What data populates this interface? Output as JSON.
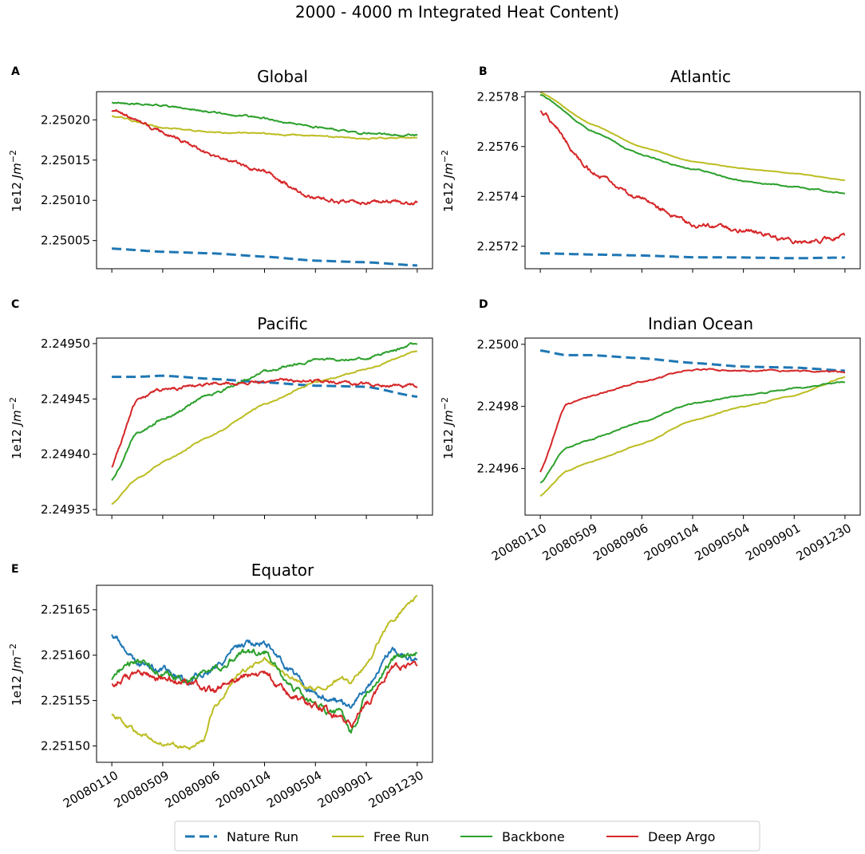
{
  "figure": {
    "title": "2000 - 4000 m Integrated Heat Content)"
  },
  "colors": {
    "Nature Run": "#1f77b4",
    "Free Run": "#bcbd22",
    "Backbone": "#2ca02c",
    "Deep Argo": "#d62728"
  },
  "legend": {
    "entries": [
      "Nature Run",
      "Free Run",
      "Backbone",
      "Deep Argo"
    ]
  },
  "chart_data": [
    {
      "type": "line",
      "panel": "A",
      "title": "Global",
      "ylabel": "1e12 Jm^-2",
      "ylim": [
        2.250015,
        2.250235
      ],
      "yticks": [
        2.25005,
        2.2501,
        2.25015,
        2.2502
      ],
      "yticklabels": [
        "2.25005",
        "2.25010",
        "2.25015",
        "2.25020"
      ],
      "xlim": [
        -3,
        63
      ],
      "xticks": [
        0,
        10,
        20,
        30,
        40,
        50,
        60
      ],
      "xticklabels": [
        "20080110",
        "20080509",
        "20080906",
        "20090104",
        "20090504",
        "20090901",
        "20091230"
      ],
      "show_xticklabels": false,
      "x": [
        0,
        10,
        20,
        30,
        40,
        50,
        60
      ],
      "series": [
        {
          "name": "Nature Run",
          "style": "dashed",
          "noise": 0,
          "values": [
            2.25004,
            2.250036,
            2.250034,
            2.25003,
            2.250025,
            2.250023,
            2.250019
          ]
        },
        {
          "name": "Free Run",
          "style": "solid",
          "noise": 8e-07,
          "values": [
            2.250205,
            2.25019,
            2.250185,
            2.250183,
            2.25018,
            2.250177,
            2.250178
          ]
        },
        {
          "name": "Backbone",
          "style": "solid",
          "noise": 1.2e-06,
          "values": [
            2.250222,
            2.250218,
            2.25021,
            2.250202,
            2.250191,
            2.250183,
            2.250181
          ]
        },
        {
          "name": "Deep Argo",
          "style": "solid",
          "noise": 2.5e-06,
          "values": [
            2.250213,
            2.250185,
            2.250155,
            2.250135,
            2.250102,
            2.250097,
            2.250098
          ]
        }
      ]
    },
    {
      "type": "line",
      "panel": "B",
      "title": "Atlantic",
      "ylabel": "1e12 Jm^-2",
      "ylim": [
        2.25711,
        2.25782
      ],
      "yticks": [
        2.2572,
        2.2574,
        2.2576,
        2.2578
      ],
      "yticklabels": [
        "2.2572",
        "2.2574",
        "2.2576",
        "2.2578"
      ],
      "xlim": [
        -3,
        63
      ],
      "xticks": [
        0,
        10,
        20,
        30,
        40,
        50,
        60
      ],
      "xticklabels": [
        "20080110",
        "20080509",
        "20080906",
        "20090104",
        "20090504",
        "20090901",
        "20091230"
      ],
      "show_xticklabels": false,
      "x": [
        0,
        10,
        20,
        30,
        40,
        50,
        60
      ],
      "series": [
        {
          "name": "Nature Run",
          "style": "dashed",
          "noise": 0,
          "values": [
            2.257172,
            2.257167,
            2.257163,
            2.257156,
            2.257155,
            2.257152,
            2.257155
          ]
        },
        {
          "name": "Free Run",
          "style": "solid",
          "noise": 1e-06,
          "values": [
            2.257818,
            2.25769,
            2.257597,
            2.25754,
            2.257512,
            2.257492,
            2.257465
          ]
        },
        {
          "name": "Backbone",
          "style": "solid",
          "noise": 2.5e-06,
          "values": [
            2.25781,
            2.257665,
            2.257565,
            2.257508,
            2.257462,
            2.257438,
            2.257412
          ]
        },
        {
          "name": "Deep Argo",
          "style": "solid",
          "noise": 9e-06,
          "values": [
            2.257745,
            2.257505,
            2.257385,
            2.257285,
            2.257265,
            2.257215,
            2.25724
          ]
        }
      ]
    },
    {
      "type": "line",
      "panel": "C",
      "title": "Pacific",
      "ylabel": "1e12 Jm^-2",
      "ylim": [
        2.249345,
        2.249505
      ],
      "yticks": [
        2.24935,
        2.2494,
        2.24945,
        2.2495
      ],
      "yticklabels": [
        "2.24935",
        "2.24940",
        "2.24945",
        "2.24950"
      ],
      "xlim": [
        -3,
        63
      ],
      "xticks": [
        0,
        10,
        20,
        30,
        40,
        50,
        60
      ],
      "xticklabels": [
        "20080110",
        "20080509",
        "20080906",
        "20090104",
        "20090504",
        "20090901",
        "20091230"
      ],
      "show_xticklabels": false,
      "x": [
        0,
        5,
        10,
        20,
        30,
        40,
        50,
        60
      ],
      "series": [
        {
          "name": "Nature Run",
          "style": "dashed",
          "noise": 0,
          "values": [
            2.24947,
            2.24947,
            2.249471,
            2.249468,
            2.249465,
            2.249462,
            2.249461,
            2.249452
          ]
        },
        {
          "name": "Free Run",
          "style": "solid",
          "noise": 6e-07,
          "values": [
            2.249355,
            2.249378,
            2.249393,
            2.249418,
            2.249445,
            2.249465,
            2.249477,
            2.249493
          ]
        },
        {
          "name": "Backbone",
          "style": "solid",
          "noise": 1.2e-06,
          "values": [
            2.249377,
            2.24942,
            2.249432,
            2.249455,
            2.249475,
            2.249485,
            2.249487,
            2.2495
          ]
        },
        {
          "name": "Deep Argo",
          "style": "solid",
          "noise": 1.5e-06,
          "values": [
            2.249389,
            2.24945,
            2.249458,
            2.249464,
            2.249465,
            2.249467,
            2.249463,
            2.249462
          ]
        }
      ]
    },
    {
      "type": "line",
      "panel": "D",
      "title": "Indian Ocean",
      "ylabel": "1e12 Jm^-2",
      "ylim": [
        2.24945,
        2.25002
      ],
      "yticks": [
        2.2496,
        2.2498,
        2.25
      ],
      "yticklabels": [
        "2.2496",
        "2.2498",
        "2.2500"
      ],
      "xlim": [
        -3,
        63
      ],
      "xticks": [
        0,
        10,
        20,
        30,
        40,
        50,
        60
      ],
      "xticklabels": [
        "20080110",
        "20080509",
        "20080906",
        "20090104",
        "20090504",
        "20090901",
        "20091230"
      ],
      "show_xticklabels": true,
      "x": [
        0,
        5,
        10,
        20,
        30,
        40,
        50,
        60
      ],
      "series": [
        {
          "name": "Nature Run",
          "style": "dashed",
          "noise": 0,
          "values": [
            2.24998,
            2.249965,
            2.249965,
            2.249955,
            2.24994,
            2.249928,
            2.249925,
            2.249915
          ]
        },
        {
          "name": "Free Run",
          "style": "solid",
          "noise": 1.5e-06,
          "values": [
            2.249512,
            2.24959,
            2.249622,
            2.24968,
            2.249755,
            2.2498,
            2.249835,
            2.249895
          ]
        },
        {
          "name": "Backbone",
          "style": "solid",
          "noise": 2e-06,
          "values": [
            2.249555,
            2.249665,
            2.249695,
            2.24975,
            2.24981,
            2.249835,
            2.249858,
            2.249878
          ]
        },
        {
          "name": "Deep Argo",
          "style": "solid",
          "noise": 2.5e-06,
          "values": [
            2.24959,
            2.249805,
            2.249835,
            2.24988,
            2.24992,
            2.249915,
            2.249915,
            2.24991
          ]
        }
      ]
    },
    {
      "type": "line",
      "panel": "E",
      "title": "Equator",
      "ylabel": "1e12 Jm^-2",
      "ylim": [
        2.251482,
        2.251677
      ],
      "yticks": [
        2.2515,
        2.25155,
        2.2516,
        2.25165
      ],
      "yticklabels": [
        "2.25150",
        "2.25155",
        "2.25160",
        "2.25165"
      ],
      "xlim": [
        -3,
        63
      ],
      "xticks": [
        0,
        10,
        20,
        30,
        40,
        50,
        60
      ],
      "xticklabels": [
        "20080110",
        "20080509",
        "20080906",
        "20090104",
        "20090504",
        "20090901",
        "20091230"
      ],
      "show_xticklabels": true,
      "x": [
        0,
        5,
        10,
        15,
        18,
        20,
        25,
        30,
        35,
        40,
        45,
        47,
        50,
        55,
        60
      ],
      "series": [
        {
          "name": "Nature Run",
          "style": "solid",
          "noise": 4e-06,
          "values": [
            2.251625,
            2.25159,
            2.251585,
            2.25157,
            2.25158,
            2.251585,
            2.25161,
            2.251615,
            2.25158,
            2.251555,
            2.25155,
            2.25154,
            2.251565,
            2.251605,
            2.25159
          ]
        },
        {
          "name": "Free Run",
          "style": "solid",
          "noise": 2.5e-06,
          "values": [
            2.251535,
            2.251515,
            2.251505,
            2.251497,
            2.251505,
            2.25154,
            2.25158,
            2.251595,
            2.251575,
            2.25156,
            2.251575,
            2.25157,
            2.25159,
            2.25164,
            2.251665
          ]
        },
        {
          "name": "Backbone",
          "style": "solid",
          "noise": 4e-06,
          "values": [
            2.251575,
            2.251595,
            2.25158,
            2.25157,
            2.25158,
            2.251583,
            2.2516,
            2.251605,
            2.251565,
            2.251545,
            2.251535,
            2.251515,
            2.251555,
            2.251595,
            2.251605
          ]
        },
        {
          "name": "Deep Argo",
          "style": "solid",
          "noise": 4e-06,
          "values": [
            2.25157,
            2.25158,
            2.251575,
            2.25157,
            2.251565,
            2.25156,
            2.251575,
            2.25158,
            2.251555,
            2.251545,
            2.25153,
            2.251525,
            2.251545,
            2.251585,
            2.25159
          ]
        }
      ]
    }
  ]
}
